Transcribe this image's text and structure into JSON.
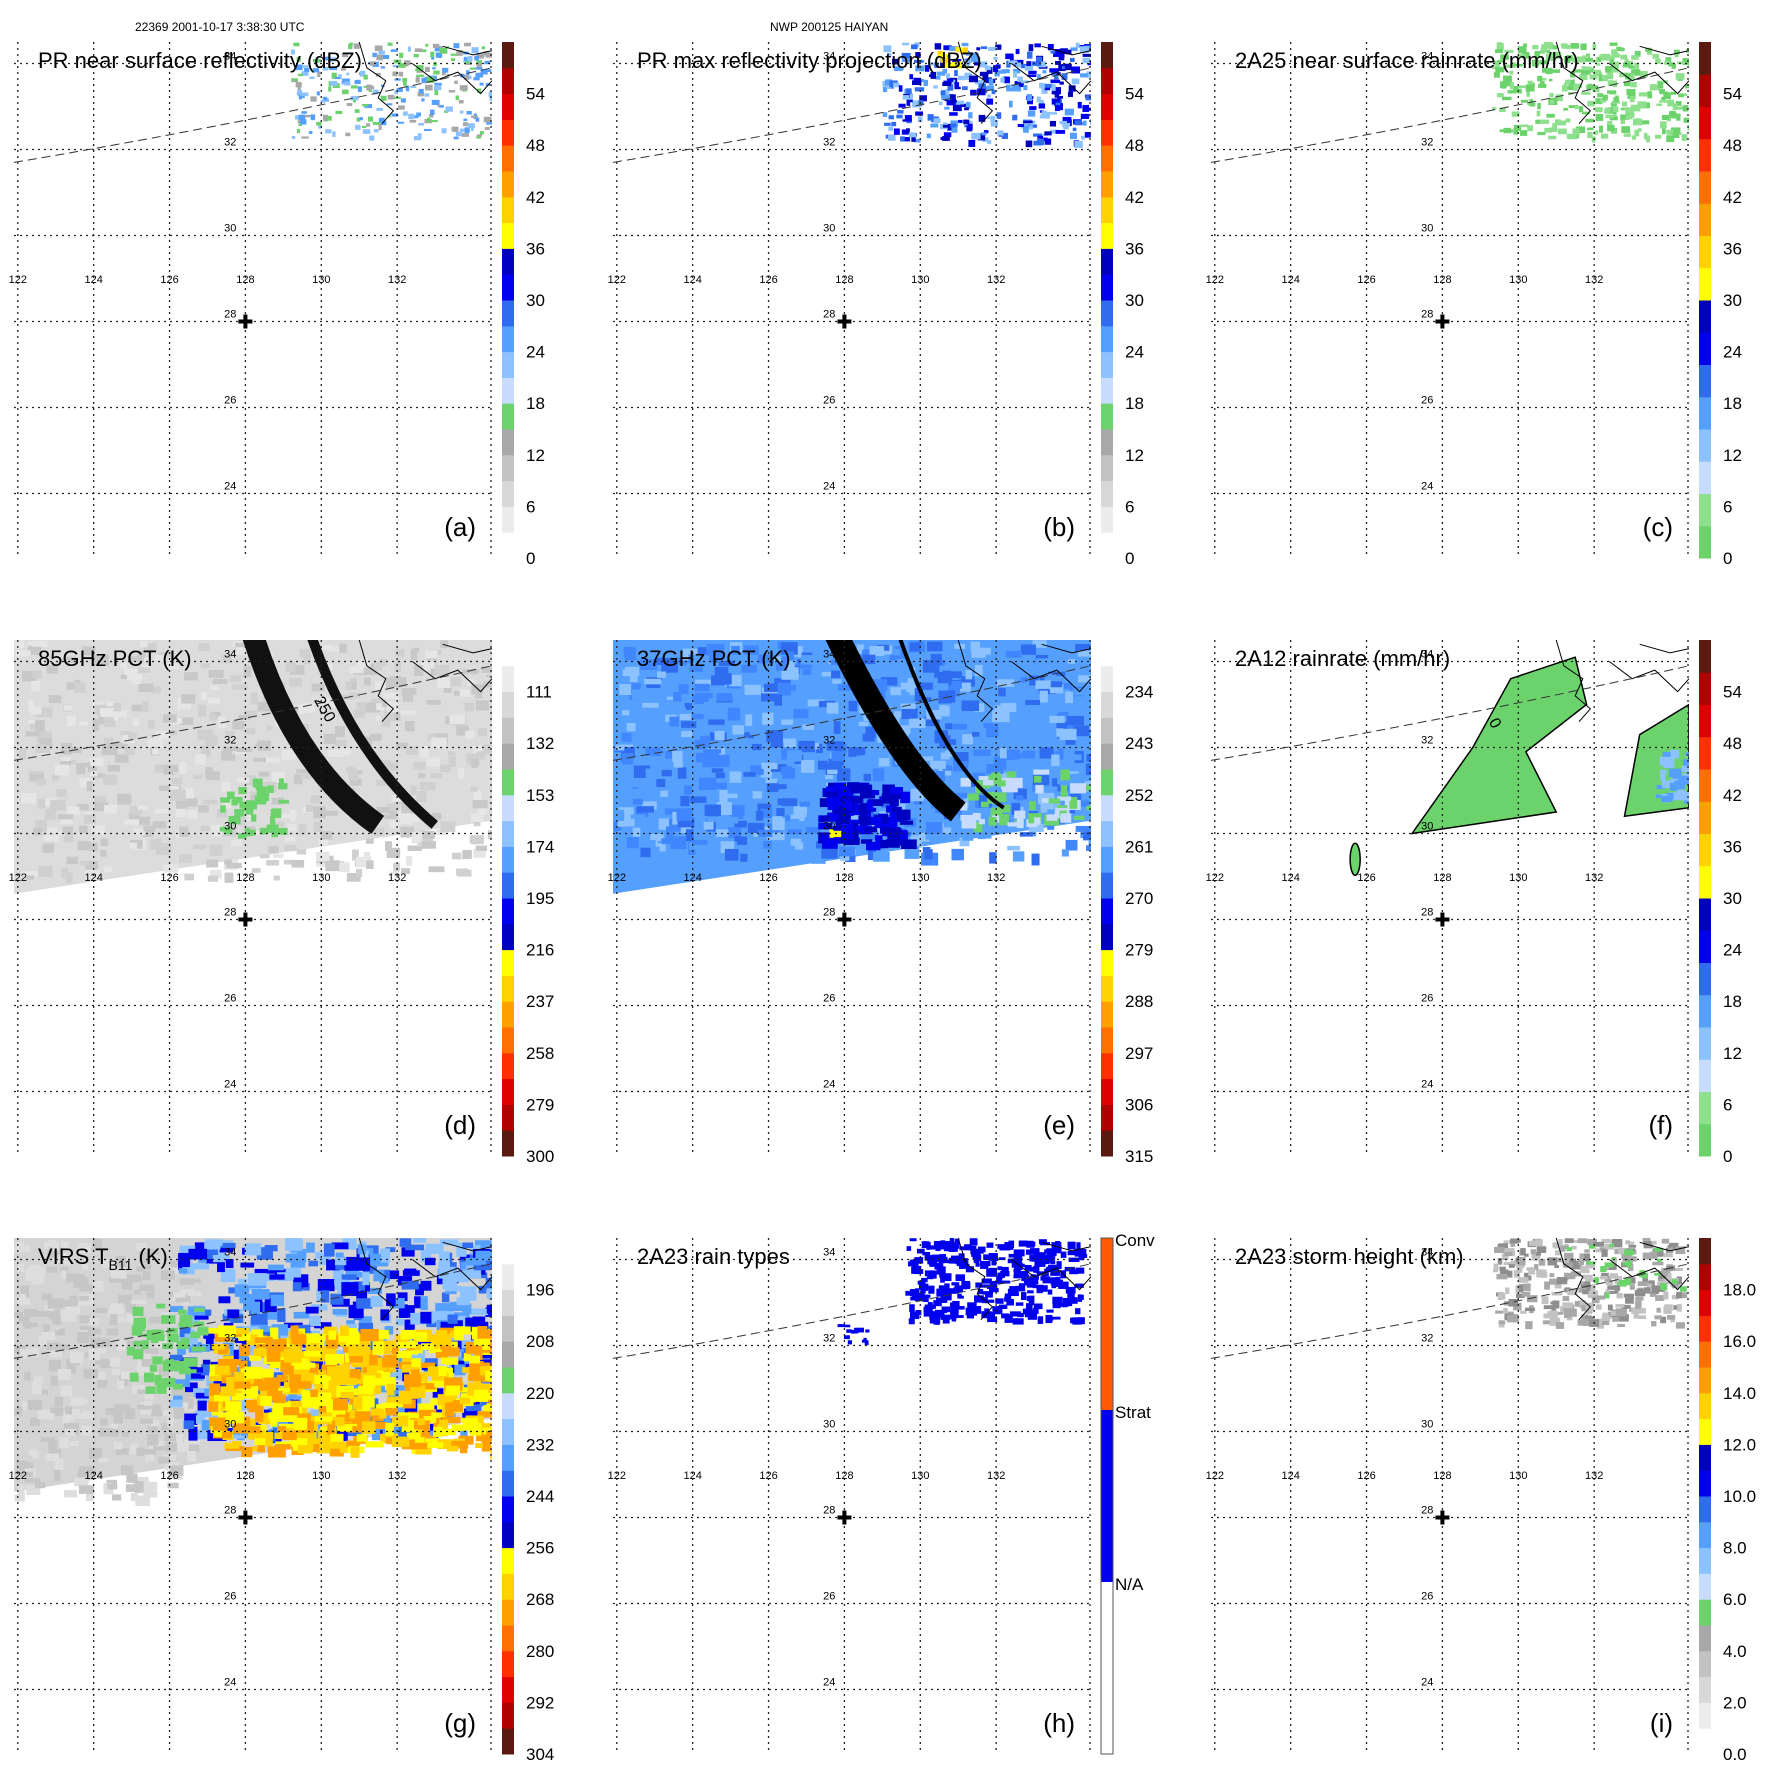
{
  "header": {
    "left": "22369 2001-10-17 3:38:30 UTC",
    "center": "NWP 200125 HAIYAN"
  },
  "map": {
    "lon_ticks": [
      "122",
      "124",
      "126",
      "128",
      "130",
      "132"
    ],
    "lat_ticks": [
      "34",
      "32",
      "30",
      "28",
      "26",
      "24"
    ],
    "lon_range": [
      121.9,
      134.5
    ],
    "lat_range": [
      22.5,
      34.5
    ],
    "storm_center": {
      "lon": 128,
      "lat": 28
    }
  },
  "panels": [
    {
      "id": "a",
      "title": "PR near surface reflectivity (dBZ)",
      "label": "(a)",
      "colorbar": {
        "ticks": [
          "54",
          "48",
          "42",
          "36",
          "30",
          "24",
          "18",
          "12",
          "6",
          "0"
        ],
        "colors": [
          "#ffffff",
          "#ececec",
          "#d8d8d8",
          "#c2c2c2",
          "#a8a8a8",
          "#6cd36c",
          "#c8dcff",
          "#8cc2ff",
          "#55a0ff",
          "#2f6cf0",
          "#0000ee",
          "#0000c0",
          "#ffff00",
          "#ffd200",
          "#ffa000",
          "#ff7000",
          "#ff3000",
          "#e00000",
          "#b00000",
          "#5a1a10"
        ]
      },
      "data": "pr_ns"
    },
    {
      "id": "b",
      "title": "PR max reflectivity projection (dBZ)",
      "label": "(b)",
      "colorbar": {
        "ticks": [
          "54",
          "48",
          "42",
          "36",
          "30",
          "24",
          "18",
          "12",
          "6",
          "0"
        ],
        "colors": [
          "#ffffff",
          "#ececec",
          "#d8d8d8",
          "#c2c2c2",
          "#a8a8a8",
          "#6cd36c",
          "#c8dcff",
          "#8cc2ff",
          "#55a0ff",
          "#2f6cf0",
          "#0000ee",
          "#0000c0",
          "#ffff00",
          "#ffd200",
          "#ffa000",
          "#ff7000",
          "#ff3000",
          "#e00000",
          "#b00000",
          "#5a1a10"
        ]
      },
      "data": "pr_max"
    },
    {
      "id": "c",
      "title": "2A25 near surface rainrate (mm/hr)",
      "label": "(c)",
      "colorbar": {
        "ticks": [
          "54",
          "48",
          "42",
          "36",
          "30",
          "24",
          "18",
          "12",
          "6",
          "0"
        ],
        "colors": [
          "#6cd36c",
          "#8ee08e",
          "#c8dcff",
          "#8cc2ff",
          "#55a0ff",
          "#2f6cf0",
          "#0000ee",
          "#0000c0",
          "#ffff00",
          "#ffd200",
          "#ffa000",
          "#ff7000",
          "#ff3000",
          "#e00000",
          "#b00000",
          "#5a1a10"
        ]
      },
      "data": "rr_2a25"
    },
    {
      "id": "d",
      "title": "85GHz PCT (K)",
      "label": "(d)",
      "colorbar": {
        "ticks": [
          "111",
          "132",
          "153",
          "174",
          "195",
          "216",
          "237",
          "258",
          "279",
          "300"
        ],
        "colors": [
          "#5a1a10",
          "#b00000",
          "#e00000",
          "#ff3000",
          "#ff7000",
          "#ffa000",
          "#ffd200",
          "#ffff00",
          "#0000c0",
          "#0000ee",
          "#2f6cf0",
          "#55a0ff",
          "#8cc2ff",
          "#c8dcff",
          "#6cd36c",
          "#a8a8a8",
          "#c2c2c2",
          "#d8d8d8",
          "#ececec",
          "#ffffff"
        ]
      },
      "data": "pct85",
      "contour_label": "250"
    },
    {
      "id": "e",
      "title": "37GHz PCT (K)",
      "label": "(e)",
      "colorbar": {
        "ticks": [
          "234",
          "243",
          "252",
          "261",
          "270",
          "279",
          "288",
          "297",
          "306",
          "315"
        ],
        "colors": [
          "#5a1a10",
          "#b00000",
          "#e00000",
          "#ff3000",
          "#ff7000",
          "#ffa000",
          "#ffd200",
          "#ffff00",
          "#0000c0",
          "#0000ee",
          "#2f6cf0",
          "#55a0ff",
          "#8cc2ff",
          "#c8dcff",
          "#6cd36c",
          "#a8a8a8",
          "#c2c2c2",
          "#d8d8d8",
          "#ececec",
          "#ffffff"
        ]
      },
      "data": "pct37"
    },
    {
      "id": "f",
      "title": "2A12 rainrate (mm/hr)",
      "label": "(f)",
      "colorbar": {
        "ticks": [
          "54",
          "48",
          "42",
          "36",
          "30",
          "24",
          "18",
          "12",
          "6",
          "0"
        ],
        "colors": [
          "#6cd36c",
          "#8ee08e",
          "#c8dcff",
          "#8cc2ff",
          "#55a0ff",
          "#2f6cf0",
          "#0000ee",
          "#0000c0",
          "#ffff00",
          "#ffd200",
          "#ffa000",
          "#ff7000",
          "#ff3000",
          "#e00000",
          "#b00000",
          "#5a1a10"
        ]
      },
      "data": "rr_2a12",
      "contour_label": "0"
    },
    {
      "id": "g",
      "title": "VIRS T",
      "title_sub": "B11",
      "title_suffix": " (K)",
      "label": "(g)",
      "colorbar": {
        "ticks": [
          "196",
          "208",
          "220",
          "232",
          "244",
          "256",
          "268",
          "280",
          "292",
          "304"
        ],
        "colors": [
          "#5a1a10",
          "#b00000",
          "#e00000",
          "#ff3000",
          "#ff7000",
          "#ffa000",
          "#ffd200",
          "#ffff00",
          "#0000c0",
          "#0000ee",
          "#2f6cf0",
          "#55a0ff",
          "#8cc2ff",
          "#c8dcff",
          "#6cd36c",
          "#a8a8a8",
          "#c2c2c2",
          "#d8d8d8",
          "#ececec",
          "#ffffff"
        ]
      },
      "data": "virs"
    },
    {
      "id": "h",
      "title": "2A23 rain types",
      "label": "(h)",
      "colorbar": {
        "categorical": true,
        "ticks": [
          "Conv",
          "Strat",
          "N/A"
        ],
        "colors": [
          "#ff5a00",
          "#0000ee",
          "#ffffff"
        ]
      },
      "data": "rain_type"
    },
    {
      "id": "i",
      "title": "2A23 storm height (km)",
      "label": "(i)",
      "colorbar": {
        "ticks": [
          "18.0",
          "16.0",
          "14.0",
          "12.0",
          "10.0",
          "8.0",
          "6.0",
          "4.0",
          "2.0",
          "0.0"
        ],
        "colors": [
          "#ffffff",
          "#ececec",
          "#d8d8d8",
          "#c2c2c2",
          "#a8a8a8",
          "#6cd36c",
          "#c8dcff",
          "#8cc2ff",
          "#55a0ff",
          "#2f6cf0",
          "#0000ee",
          "#0000c0",
          "#ffff00",
          "#ffd200",
          "#ffa000",
          "#ff7000",
          "#ff3000",
          "#e00000",
          "#b00000",
          "#5a1a10"
        ]
      },
      "data": "storm_height"
    }
  ]
}
